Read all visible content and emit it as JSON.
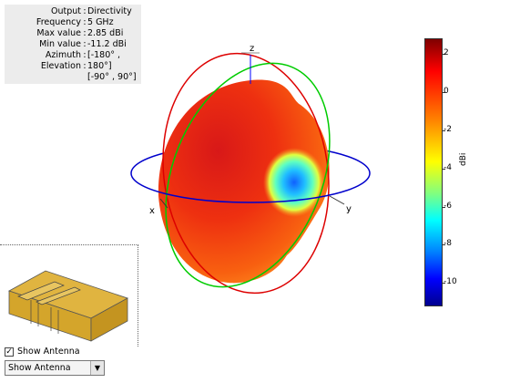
{
  "info": {
    "rows": [
      {
        "key": "Output",
        "value": "Directivity"
      },
      {
        "key": "Frequency",
        "value": "5 GHz"
      },
      {
        "key": "Max value",
        "value": "2.85 dBi"
      },
      {
        "key": "Min value",
        "value": "-11.2 dBi"
      },
      {
        "key": "Azimuth",
        "value": "[-180° ,"
      },
      {
        "key": "Elevation",
        "value": "180°]"
      },
      {
        "key": "",
        "value": "[-90° , 90°]"
      }
    ],
    "separator": ":"
  },
  "axes": {
    "x": "x",
    "y": "y",
    "z": "z"
  },
  "colors": {
    "azimuth_ring": "#0000cc",
    "elevation_ring_red": "#dd0000",
    "elevation_ring_green": "#00cc00",
    "antenna": "#d4a52b"
  },
  "colorbar": {
    "ticks": [
      "2",
      "0",
      "-2",
      "-4",
      "-6",
      "-8",
      "-10"
    ],
    "label": "dBi",
    "colors": [
      "#7f0000",
      "#ff0000",
      "#ff8000",
      "#ffff00",
      "#00ffff",
      "#0000ff",
      "#00008f"
    ]
  },
  "controls": {
    "show_antenna_checkbox_label": "Show Antenna",
    "show_antenna_checked": true,
    "dropdown_value": "Show Antenna",
    "dropdown_arrow_icon": "triangle-down"
  }
}
